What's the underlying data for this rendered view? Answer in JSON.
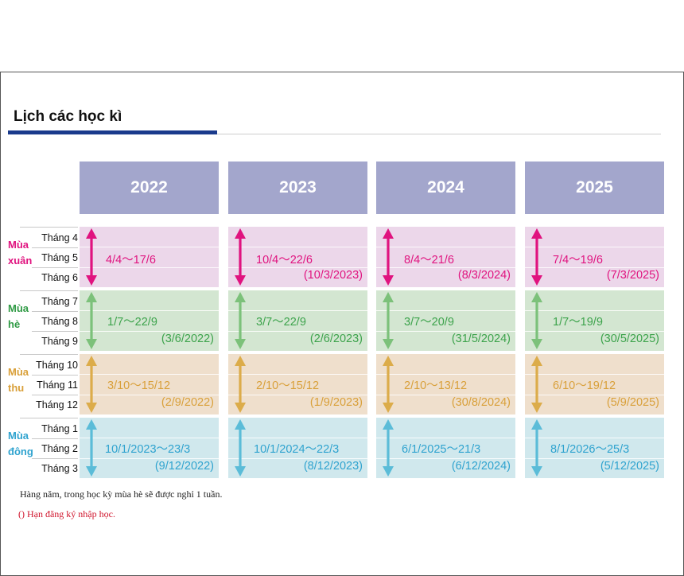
{
  "title": "Lịch các học kì",
  "years": [
    "2022",
    "2023",
    "2024",
    "2025"
  ],
  "seasons": [
    {
      "name_line1": "Mùa",
      "name_line2": "xuân",
      "color": "#e0137f",
      "bg": "#ecd7ea",
      "months": [
        "Tháng 4",
        "Tháng 5",
        "Tháng 6"
      ],
      "text_color": "#e0137f",
      "deadline_color": "#e0137f",
      "cells": [
        {
          "range": "4/4～17/6",
          "deadline": ""
        },
        {
          "range": "10/4～22/6",
          "deadline": "(10/3/2023)"
        },
        {
          "range": "8/4～21/6",
          "deadline": "(8/3/2024)"
        },
        {
          "range": "7/4～19/6",
          "deadline": "(7/3/2025)"
        }
      ]
    },
    {
      "name_line1": "Mùa",
      "name_line2": "hè",
      "color": "#2f9a44",
      "bg": "#d3e6d1",
      "months": [
        "Tháng 7",
        "Tháng 8",
        "Tháng 9"
      ],
      "text_color": "#3da34c",
      "deadline_color": "#3da34c",
      "cells": [
        {
          "range": "1/7～22/9",
          "deadline": "(3/6/2022)"
        },
        {
          "range": "3/7～22/9",
          "deadline": "(2/6/2023)"
        },
        {
          "range": "3/7～20/9",
          "deadline": "(31/5/2024)"
        },
        {
          "range": "1/7～19/9",
          "deadline": "(30/5/2025)"
        }
      ]
    },
    {
      "name_line1": "Mùa",
      "name_line2": "thu",
      "color": "#d9a03a",
      "bg": "#efdfcc",
      "months": [
        "Tháng 10",
        "Tháng 11",
        "Tháng 12"
      ],
      "text_color": "#d9a03a",
      "deadline_color": "#d9a03a",
      "cells": [
        {
          "range": "3/10～15/12",
          "deadline": "(2/9/2022)"
        },
        {
          "range": "2/10～15/12",
          "deadline": "(1/9/2023)"
        },
        {
          "range": "2/10～13/12",
          "deadline": "(30/8/2024)"
        },
        {
          "range": "6/10～19/12",
          "deadline": "(5/9/2025)"
        }
      ]
    },
    {
      "name_line1": "Mùa",
      "name_line2": "đông",
      "color": "#2fa3cf",
      "bg": "#d0e8ed",
      "months": [
        "Tháng 1",
        "Tháng 2",
        "Tháng 3"
      ],
      "text_color": "#2fa3cf",
      "deadline_color": "#2fa3cf",
      "cells": [
        {
          "range": "10/1/2023～23/3",
          "deadline": "(9/12/2022)"
        },
        {
          "range": "10/1/2024～22/3",
          "deadline": "(8/12/2023)"
        },
        {
          "range": "6/1/2025～21/3",
          "deadline": "(6/12/2024)"
        },
        {
          "range": "8/1/2026～25/3",
          "deadline": "(5/12/2025)"
        }
      ]
    }
  ],
  "arrow_colors": [
    "#e0137f",
    "#7cc17a",
    "#dcac4a",
    "#5bbcd8"
  ],
  "notes": {
    "line1": "Hàng năm, trong học kỳ mùa hè sẽ được nghỉ 1 tuần.",
    "line2": "() Hạn đăng ký nhập học."
  }
}
